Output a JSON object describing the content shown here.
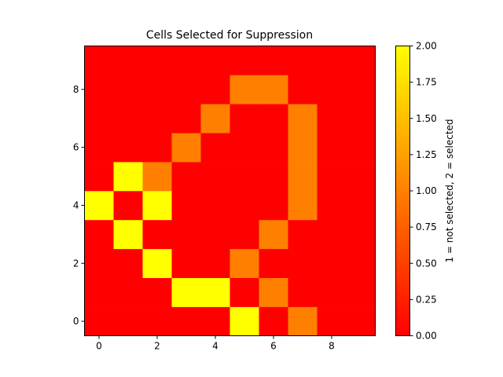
{
  "chart_data": {
    "type": "heatmap",
    "title": "Cells Selected for Suppression",
    "colormap": "autumn",
    "colors": {
      "0": "#ff0000",
      "1": "#ff8000",
      "2": "#ffff00"
    },
    "xlim": [
      -0.5,
      9.5
    ],
    "ylim": [
      -0.5,
      9.5
    ],
    "x_ticks": [
      "0",
      "2",
      "4",
      "6",
      "8"
    ],
    "y_ticks": [
      "0",
      "2",
      "4",
      "6",
      "8"
    ],
    "grid": [
      [
        0,
        0,
        0,
        0,
        0,
        2,
        0,
        1,
        0,
        0
      ],
      [
        0,
        0,
        0,
        2,
        2,
        0,
        1,
        0,
        0,
        0
      ],
      [
        0,
        0,
        2,
        0,
        0,
        1,
        0,
        0,
        0,
        0
      ],
      [
        0,
        2,
        0,
        0,
        0,
        0,
        1,
        0,
        0,
        0
      ],
      [
        2,
        0,
        2,
        0,
        0,
        0,
        0,
        1,
        0,
        0
      ],
      [
        0,
        2,
        1,
        0,
        0,
        0,
        0,
        1,
        0,
        0
      ],
      [
        0,
        0,
        0,
        1,
        0,
        0,
        0,
        1,
        0,
        0
      ],
      [
        0,
        0,
        0,
        0,
        1,
        0,
        0,
        1,
        0,
        0
      ],
      [
        0,
        0,
        0,
        0,
        0,
        1,
        1,
        0,
        0,
        0
      ],
      [
        0,
        0,
        0,
        0,
        0,
        0,
        0,
        0,
        0,
        0
      ]
    ],
    "colorbar": {
      "label": "1 = not selected, 2 = selected",
      "range": [
        0,
        2
      ],
      "ticks": [
        "0.00",
        "0.25",
        "0.50",
        "0.75",
        "1.00",
        "1.25",
        "1.50",
        "1.75",
        "2.00"
      ]
    }
  }
}
